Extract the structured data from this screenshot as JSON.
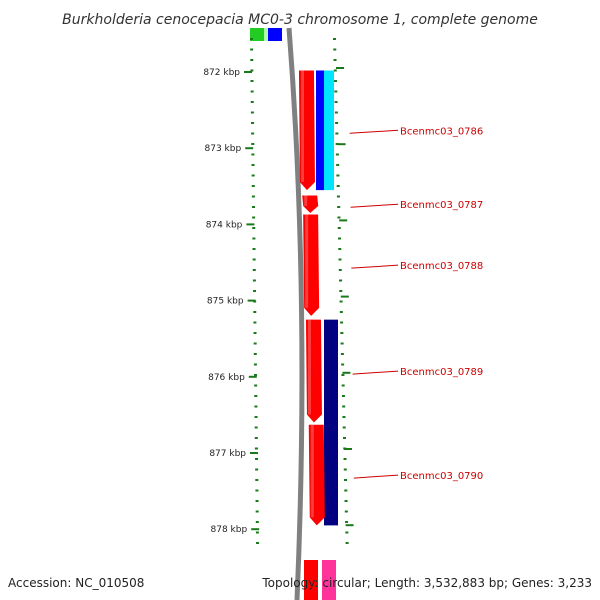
{
  "title": "Burkholderia cenocepacia MC0-3 chromosome 1, complete genome",
  "footer": {
    "accession": "Accession: NC_010508",
    "summary": "Topology: circular; Length: 3,532,883 bp; Genes: 3,233"
  },
  "axis": {
    "unit": "kbp",
    "ticks": [
      {
        "value": 872,
        "label": "872 kbp"
      },
      {
        "value": 873,
        "label": "873 kbp"
      },
      {
        "value": 874,
        "label": "874 kbp"
      },
      {
        "value": 875,
        "label": "875 kbp"
      },
      {
        "value": 876,
        "label": "876 kbp"
      },
      {
        "value": 877,
        "label": "877 kbp"
      },
      {
        "value": 878,
        "label": "878 kbp"
      }
    ]
  },
  "genes": [
    {
      "name": "Bcenmc03_0786",
      "start": 871.98,
      "end": 873.55,
      "color": "#ff0000"
    },
    {
      "name": "Bcenmc03_0787",
      "start": 873.62,
      "end": 873.85,
      "color": "#ff0000"
    },
    {
      "name": "Bcenmc03_0788",
      "start": 873.87,
      "end": 875.2,
      "color": "#ff0000"
    },
    {
      "name": "Bcenmc03_0789",
      "start": 875.25,
      "end": 876.6,
      "color": "#ff0000"
    },
    {
      "name": "Bcenmc03_0790",
      "start": 876.63,
      "end": 877.95,
      "color": "#ff0000"
    }
  ],
  "features": [
    {
      "start": 871.98,
      "end": 873.55,
      "color": "#0000ff"
    },
    {
      "start": 871.98,
      "end": 873.55,
      "color": "#00e5ff"
    },
    {
      "start": 875.25,
      "end": 877.95,
      "color": "#000080"
    }
  ],
  "colors": {
    "backbone": "#808080",
    "dots": "#1a7a1a",
    "label": "#cc0000"
  }
}
